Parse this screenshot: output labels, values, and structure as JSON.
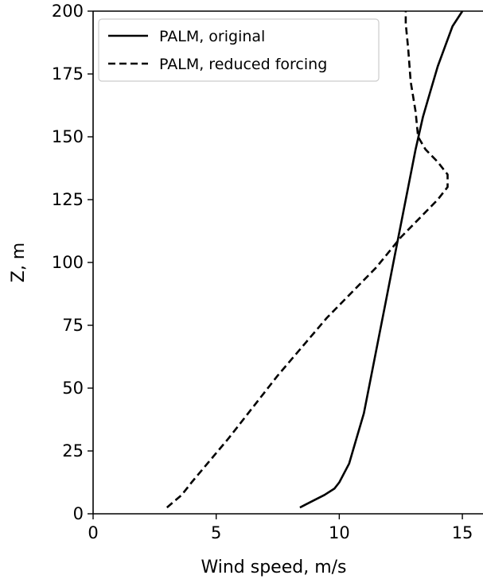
{
  "chart_data": {
    "type": "line",
    "title": "",
    "xlabel": "Wind speed, m/s",
    "ylabel": "Z, m",
    "xlim": [
      0,
      16
    ],
    "ylim": [
      0,
      200
    ],
    "xticks": [
      0,
      5,
      10,
      15
    ],
    "yticks": [
      0,
      25,
      50,
      75,
      100,
      125,
      150,
      175,
      200
    ],
    "grid": false,
    "legend_position": "top-left",
    "series": [
      {
        "name": "PALM, original",
        "style": "solid",
        "color": "#000000",
        "x": [
          8.4,
          8.9,
          9.4,
          9.8,
          10.0,
          10.4,
          10.7,
          11.0,
          11.3,
          11.6,
          11.9,
          12.2,
          12.5,
          12.8,
          13.1,
          13.4,
          13.7,
          14.0,
          14.3,
          14.6,
          15.0
        ],
        "y": [
          2.5,
          5,
          7.5,
          10,
          12.5,
          20,
          30,
          40,
          55,
          70,
          85,
          100,
          115,
          130,
          145,
          158,
          168,
          178,
          186,
          194,
          200
        ]
      },
      {
        "name": "PALM, reduced forcing",
        "style": "dashed",
        "color": "#000000",
        "x": [
          3.0,
          3.3,
          3.6,
          4.0,
          5.5,
          7.5,
          9.5,
          11.5,
          12.5,
          13.3,
          14.0,
          14.4,
          14.4,
          14.0,
          13.5,
          13.2,
          13.1,
          12.9,
          12.8,
          12.7,
          12.7
        ],
        "y": [
          2.5,
          5,
          7.5,
          12.5,
          30,
          55,
          78,
          98,
          110,
          118,
          125,
          130,
          135,
          140,
          145,
          150,
          160,
          172,
          185,
          195,
          200
        ]
      }
    ]
  }
}
